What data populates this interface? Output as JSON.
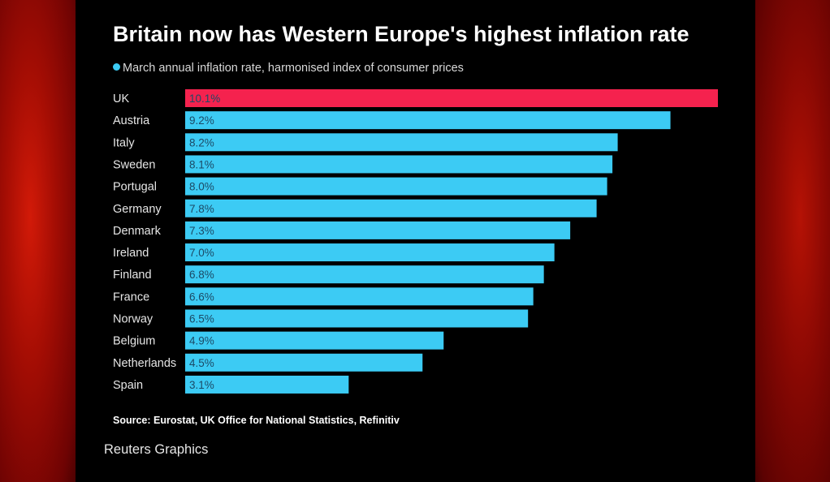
{
  "colors": {
    "highlight_bar": "#f5224e",
    "normal_bar": "#3ccbf4",
    "country_label": "#e6e6e6",
    "value_label": "#1c4a66"
  },
  "chart_data": {
    "type": "bar",
    "orientation": "horizontal",
    "title": "Britain now has Western Europe's highest inflation rate",
    "subtitle": "March annual inflation rate, harmonised index of consumer prices",
    "source": "Source: Eurostat, UK Office for National Statistics, Refinitiv",
    "credit": "Reuters Graphics",
    "categories": [
      "UK",
      "Austria",
      "Italy",
      "Sweden",
      "Portugal",
      "Germany",
      "Denmark",
      "Ireland",
      "Finland",
      "France",
      "Norway",
      "Belgium",
      "Netherlands",
      "Spain"
    ],
    "values": [
      10.1,
      9.2,
      8.2,
      8.1,
      8.0,
      7.8,
      7.3,
      7.0,
      6.8,
      6.6,
      6.5,
      4.9,
      4.5,
      3.1
    ],
    "value_labels": [
      "10.1%",
      "9.2%",
      "8.2%",
      "8.1%",
      "8.0%",
      "7.8%",
      "7.3%",
      "7.0%",
      "6.8%",
      "6.6%",
      "6.5%",
      "4.9%",
      "4.5%",
      "3.1%"
    ],
    "highlight": "UK",
    "xlim": [
      0,
      10.1
    ],
    "grid": false,
    "legend": "top-left"
  }
}
